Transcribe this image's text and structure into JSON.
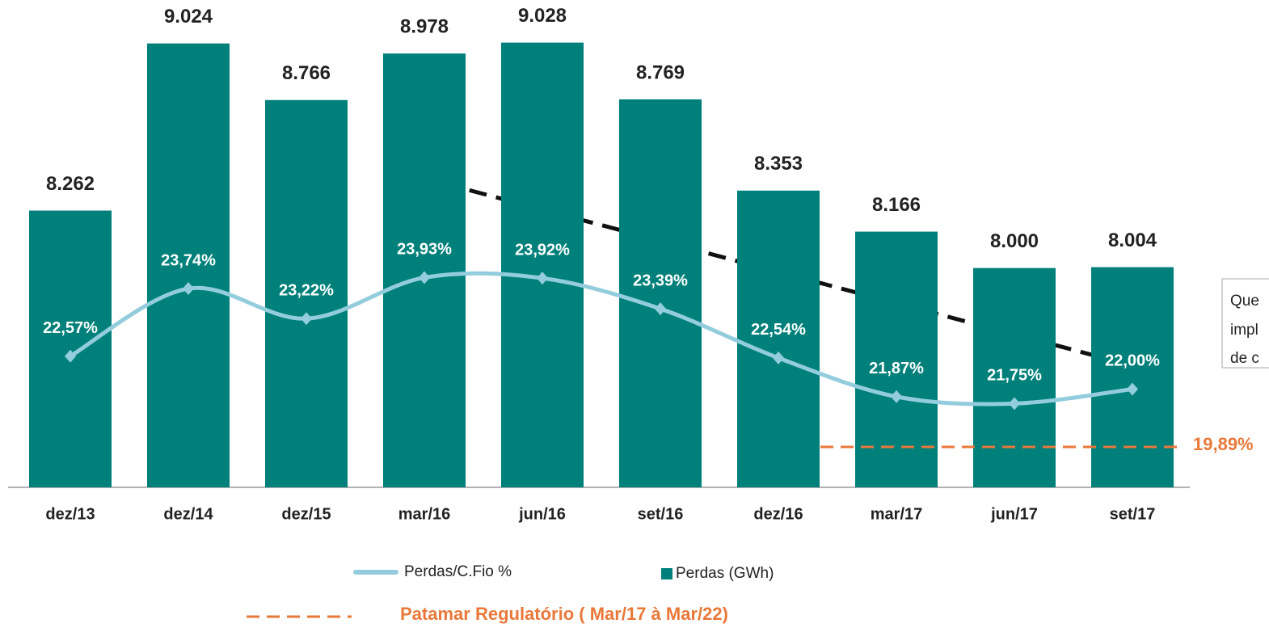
{
  "chart_data": {
    "type": "bar_line",
    "categories": [
      "dez/13",
      "dez/14",
      "dez/15",
      "mar/16",
      "jun/16",
      "set/16",
      "dez/16",
      "mar/17",
      "jun/17",
      "set/17"
    ],
    "series": [
      {
        "name": "Perdas (GWh)",
        "type": "bar",
        "color": "#00807a",
        "values": [
          8262,
          9024,
          8766,
          8978,
          9028,
          8769,
          8353,
          8166,
          8000,
          8004
        ],
        "value_labels": [
          "8.262",
          "9.024",
          "8.766",
          "8.978",
          "9.028",
          "8.769",
          "8.353",
          "8.166",
          "8.000",
          "8.004"
        ]
      },
      {
        "name": "Perdas/C.Fio %",
        "type": "line",
        "axis": "y2",
        "color": "#93cddd",
        "values": [
          22.57,
          23.74,
          23.22,
          23.93,
          23.92,
          23.39,
          22.54,
          21.87,
          21.75,
          22.0
        ],
        "value_labels": [
          "22,57%",
          "23,74%",
          "23,22%",
          "23,93%",
          "23,92%",
          "23,39%",
          "22,54%",
          "21,87%",
          "21,75%",
          "22,00%"
        ]
      }
    ],
    "ylim": [
      7000,
      9200
    ],
    "y2lim": [
      20.3,
      28.65
    ],
    "reference_label": "19,89%",
    "reference_legend": "Patamar Regulatório ( Mar/17 à Mar/22)",
    "reference_color": "#e8793a",
    "side_note": [
      "Que",
      "impl",
      "de c"
    ]
  }
}
